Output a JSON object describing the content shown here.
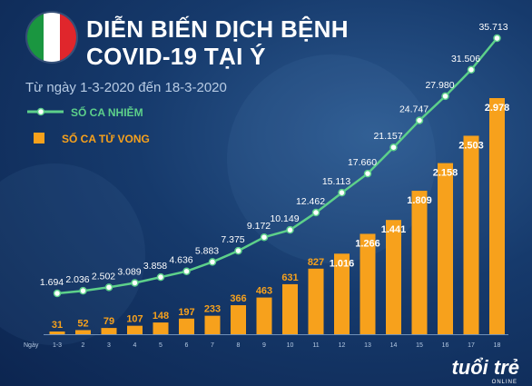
{
  "header": {
    "title_line1": "DIỄN BIẾN DỊCH BỆNH",
    "title_line2": "COVID-19 TẠI Ý",
    "subtitle": "Từ ngày 1-3-2020 đến 18-3-2020"
  },
  "flag_colors": [
    "#1a9640",
    "#ffffff",
    "#e0262c"
  ],
  "colors": {
    "line": "#5dd08a",
    "bar": "#f7a11c",
    "case_label": "#ffffff",
    "death_label": "#f7a11c",
    "background": "#163a6c"
  },
  "logo": {
    "name": "tuổi trẻ",
    "tagline": "ONLINE"
  },
  "chart_data": {
    "type": "bar+line",
    "x_axis_label": "Ngày",
    "categories": [
      "1-3",
      "2",
      "3",
      "4",
      "5",
      "6",
      "7",
      "8",
      "9",
      "10",
      "11",
      "12",
      "13",
      "14",
      "15",
      "16",
      "17",
      "18"
    ],
    "series": [
      {
        "name": "SỐ CA NHIỄM",
        "type": "line",
        "values": [
          1694,
          2036,
          2502,
          3089,
          3858,
          4636,
          5883,
          7375,
          9172,
          10149,
          12462,
          15113,
          17660,
          21157,
          24747,
          27980,
          31506,
          35713
        ],
        "labels": [
          "1.694",
          "2.036",
          "2.502",
          "3.089",
          "3.858",
          "4.636",
          "5.883",
          "7.375",
          "9.172",
          "10.149",
          "12.462",
          "15.113",
          "17.660",
          "21.157",
          "24.747",
          "27.980",
          "31.506",
          "35.713"
        ]
      },
      {
        "name": "SỐ CA TỬ VONG",
        "type": "bar",
        "values": [
          31,
          52,
          79,
          107,
          148,
          197,
          233,
          366,
          463,
          631,
          827,
          1016,
          1266,
          1441,
          1809,
          2158,
          2503,
          2978
        ],
        "labels": [
          "31",
          "52",
          "79",
          "107",
          "148",
          "197",
          "233",
          "366",
          "463",
          "631",
          "827",
          "1.016",
          "1.266",
          "1.441",
          "1.809",
          "2.158",
          "2.503",
          "2.978"
        ]
      }
    ],
    "legend_position": "top-left",
    "grid": false
  }
}
